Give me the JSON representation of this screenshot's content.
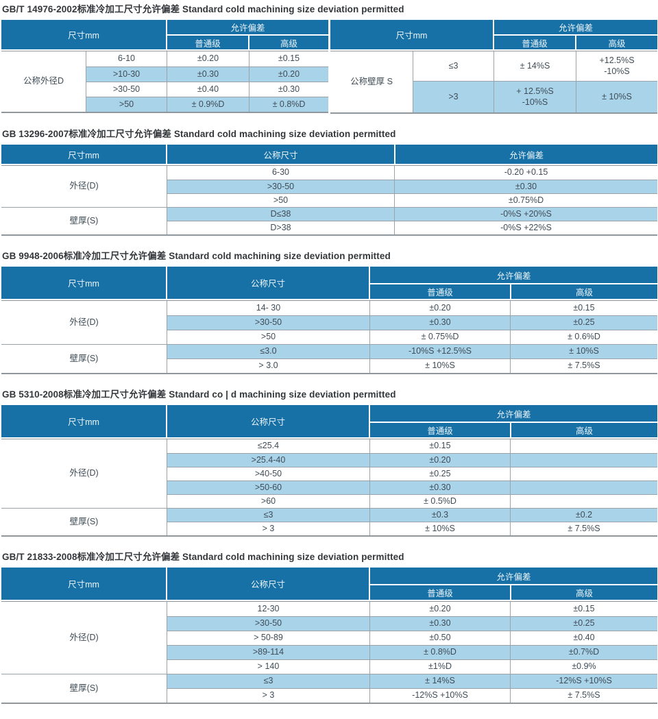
{
  "colors": {
    "header_blue": "#1771a6",
    "stripe_blue": "#a9d3e9",
    "border_gray": "#9aa2a8",
    "body_text": "#3f4c56"
  },
  "labels": {
    "dim": "尺寸mm",
    "dev": "允许偏差",
    "ord": "普通级",
    "adv": "高级",
    "size": "公称尺寸"
  },
  "sections": [
    {
      "title": "GB/T 14976-2002标准冷加工尺寸允许偏差 Standard cold machining size deviation permitted",
      "left": {
        "label": "公称外径D",
        "rows": [
          [
            "6-10",
            "±0.20",
            "±0.15"
          ],
          [
            ">10-30",
            "±0.30",
            "±0.20"
          ],
          [
            ">30-50",
            "±0.40",
            "±0.30"
          ],
          [
            ">50",
            "± 0.9%D",
            "± 0.8%D"
          ]
        ]
      },
      "right": {
        "label": "公称壁厚 S",
        "rows": [
          [
            "≤3",
            "± 14%S",
            "+12.5%S\n-10%S"
          ],
          [
            ">3",
            "+ 12.5%S\n-10%S",
            "± 10%S"
          ]
        ]
      }
    },
    {
      "title": "GB 13296-2007标准冷加工尺寸允许偏差 Standard cold machining size deviation permitted",
      "g1": {
        "label": "外径(D)",
        "rows": [
          [
            "6-30",
            "-0.20 +0.15"
          ],
          [
            ">30-50",
            "±0.30"
          ],
          [
            ">50",
            "±0.75%D"
          ]
        ]
      },
      "g2": {
        "label": "壁厚(S)",
        "rows": [
          [
            "D≤38",
            "-0%S +20%S"
          ],
          [
            "D>38",
            "-0%S +22%S"
          ]
        ]
      }
    },
    {
      "title": "GB 9948-2006标准冷加工尺寸允许偏差 Standard cold machining size deviation permitted",
      "g1": {
        "label": "外径(D)",
        "rows": [
          [
            "14- 30",
            "±0.20",
            "±0.15"
          ],
          [
            ">30-50",
            "±0.30",
            "±0.25"
          ],
          [
            ">50",
            "± 0.75%D",
            "± 0.6%D"
          ]
        ]
      },
      "g2": {
        "label": "壁厚(S)",
        "rows": [
          [
            "≤3.0",
            "-10%S +12.5%S",
            "± 10%S"
          ],
          [
            "> 3.0",
            "± 10%S",
            "± 7.5%S"
          ]
        ]
      }
    },
    {
      "title": "GB 5310-2008标准冷加工尺寸允许偏差 Standard co | d machining size deviation permitted",
      "g1": {
        "label": "外径(D)",
        "rows": [
          [
            "≤25.4",
            "±0.15",
            ""
          ],
          [
            ">25.4-40",
            "±0.20",
            ""
          ],
          [
            ">40-50",
            "±0.25",
            ""
          ],
          [
            ">50-60",
            "±0.30",
            ""
          ],
          [
            ">60",
            "± 0.5%D",
            ""
          ]
        ]
      },
      "g2": {
        "label": "壁厚(S)",
        "rows": [
          [
            "≤3",
            "±0.3",
            "±0.2"
          ],
          [
            "> 3",
            "± 10%S",
            "± 7.5%S"
          ]
        ]
      }
    },
    {
      "title": "GB/T 21833-2008标准冷加工尺寸允许偏差 Standard cold machining size deviation permitted",
      "g1": {
        "label": "外径(D)",
        "rows": [
          [
            "12-30",
            "±0.20",
            "±0.15"
          ],
          [
            ">30-50",
            "±0.30",
            "±0.25"
          ],
          [
            "> 50-89",
            "±0.50",
            "±0.40"
          ],
          [
            ">89-114",
            "± 0.8%D",
            "±0.7%D"
          ],
          [
            "> 140",
            "±1%D",
            "±0.9%"
          ]
        ]
      },
      "g2": {
        "label": "壁厚(S)",
        "rows": [
          [
            "≤3",
            "± 14%S",
            "-12%S +10%S"
          ],
          [
            "> 3",
            "-12%S +10%S",
            "± 7.5%S"
          ]
        ]
      }
    }
  ]
}
